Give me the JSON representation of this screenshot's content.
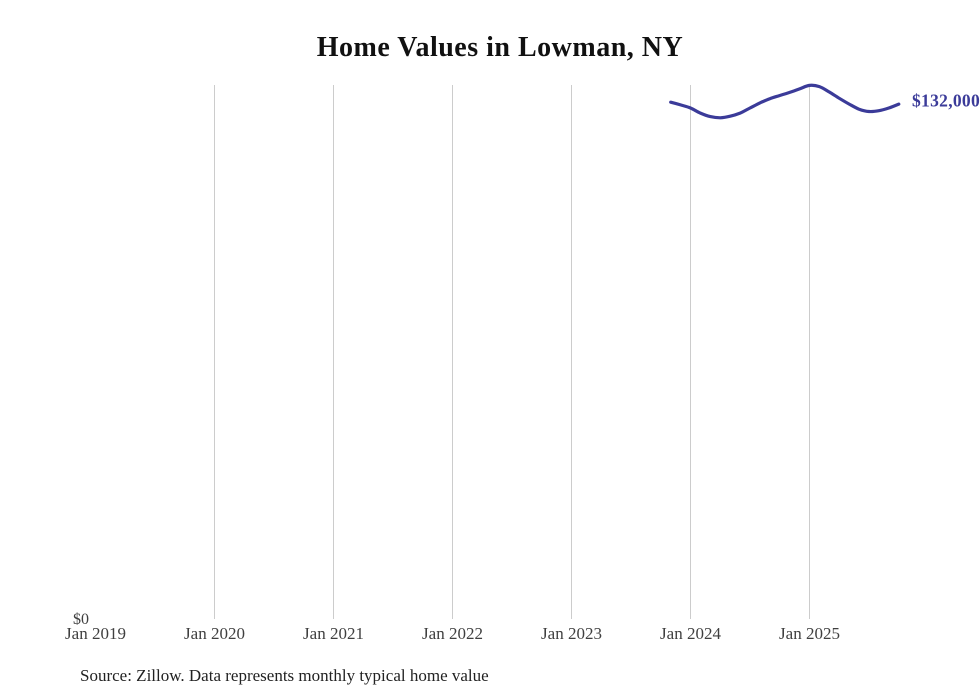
{
  "chart_data": {
    "type": "line",
    "title": "Home Values in Lowman, NY",
    "source_note": "Source: Zillow. Data represents monthly typical home value",
    "end_label": "$132,000",
    "legend": "none",
    "grid": "vertical-only",
    "x_ticks": [
      {
        "label": "Jan 2019",
        "month": "2019-01",
        "gridline": false
      },
      {
        "label": "Jan 2020",
        "month": "2020-01",
        "gridline": true
      },
      {
        "label": "Jan 2021",
        "month": "2021-01",
        "gridline": true
      },
      {
        "label": "Jan 2022",
        "month": "2022-01",
        "gridline": true
      },
      {
        "label": "Jan 2023",
        "month": "2023-01",
        "gridline": true
      },
      {
        "label": "Jan 2024",
        "month": "2024-01",
        "gridline": true
      },
      {
        "label": "Jan 2025",
        "month": "2025-01",
        "gridline": true
      }
    ],
    "y_axis": {
      "zero_label": "$0",
      "ylim": [
        0,
        136900
      ]
    },
    "series": [
      {
        "name": "Monthly typical home value",
        "x": [
          "2023-11",
          "2023-12",
          "2024-01",
          "2024-02",
          "2024-03",
          "2024-04",
          "2024-05",
          "2024-06",
          "2024-07",
          "2024-08",
          "2024-09",
          "2024-10",
          "2024-11",
          "2024-12",
          "2025-01",
          "2025-02",
          "2025-03",
          "2025-04",
          "2025-05",
          "2025-06",
          "2025-07",
          "2025-08",
          "2025-09",
          "2025-10"
        ],
        "values": [
          132500,
          131800,
          131000,
          129700,
          128800,
          128500,
          128900,
          129700,
          131000,
          132300,
          133400,
          134200,
          135000,
          135900,
          136800,
          136500,
          135100,
          133500,
          132000,
          130700,
          130100,
          130300,
          131000,
          132000
        ]
      }
    ],
    "colors": {
      "line": "#3b3b99",
      "end_label": "#3b3b99",
      "gridline": "#cccccc",
      "title": "#111111",
      "tick": "#3f3f3f",
      "source": "#222222"
    }
  }
}
